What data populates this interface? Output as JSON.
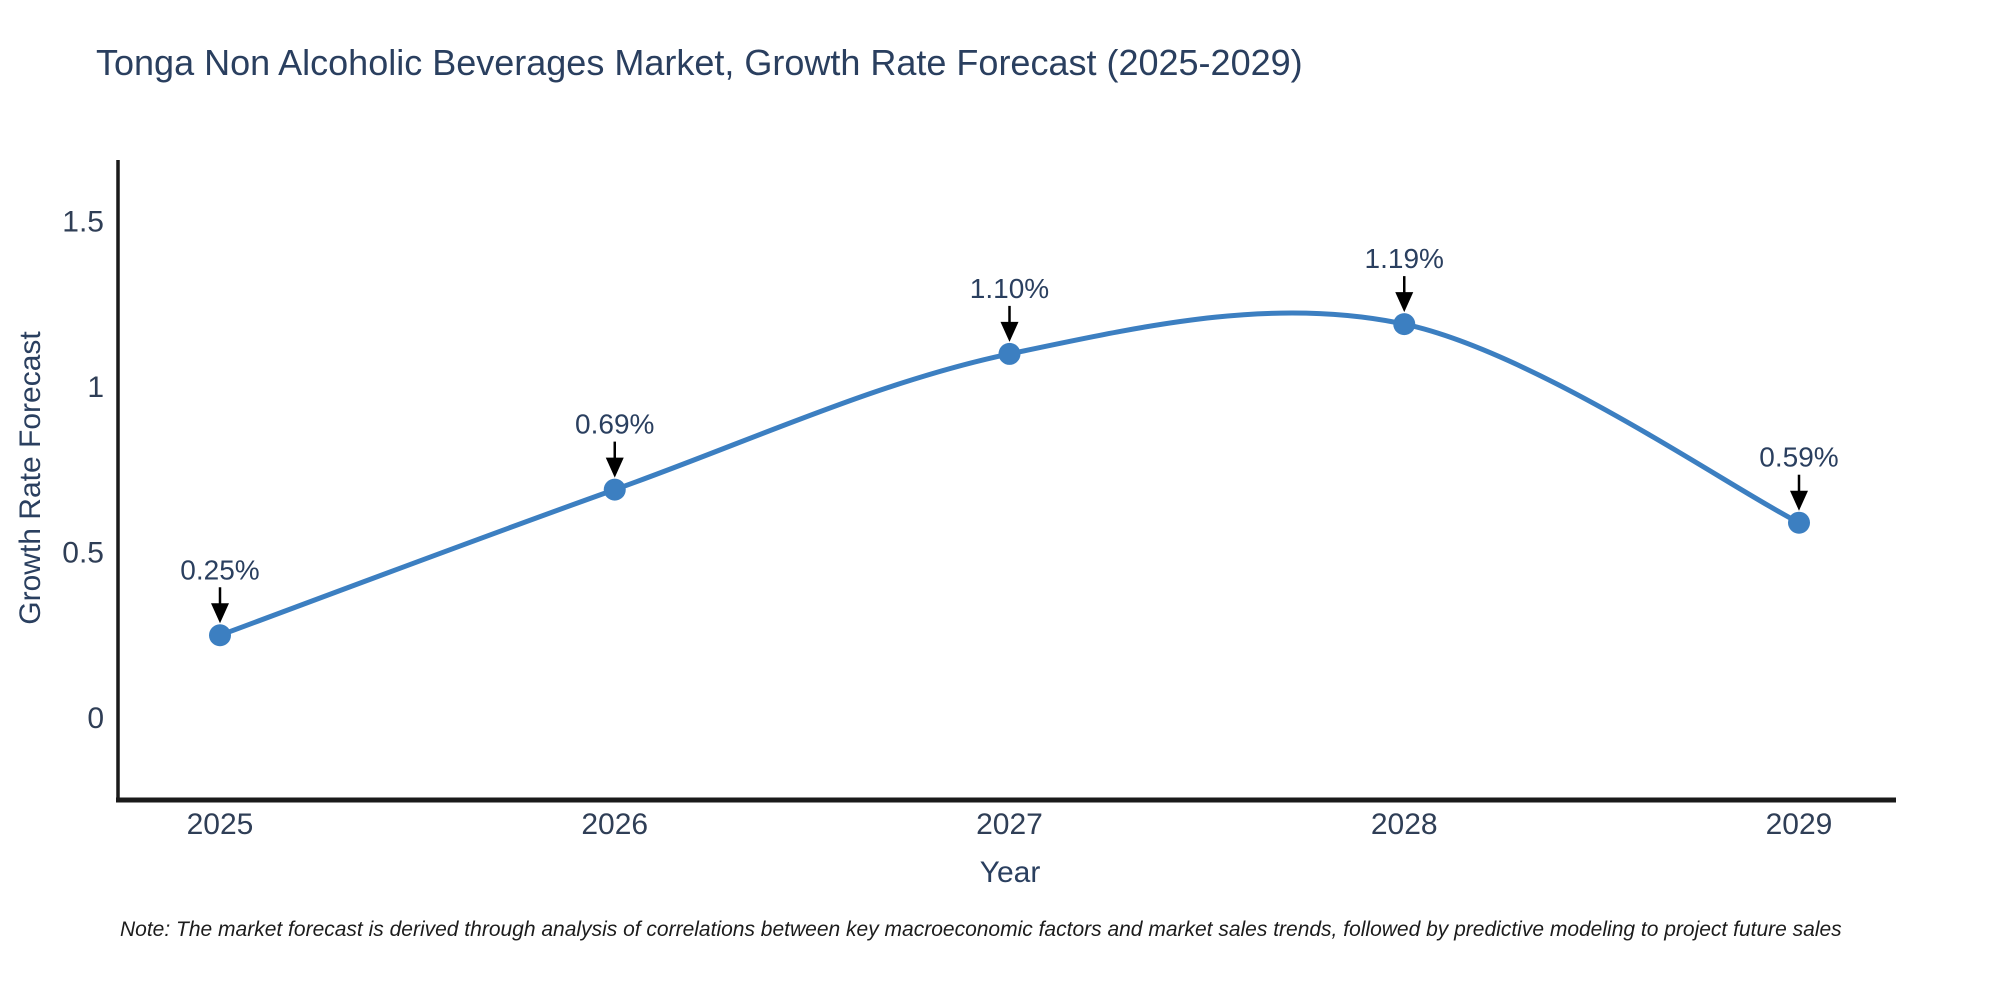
{
  "note": "Note: The market forecast is derived through analysis of correlations between key macroeconomic factors and market sales trends, followed by predictive modeling to project future sales",
  "chart_data": {
    "type": "line",
    "title": "Tonga Non Alcoholic Beverages Market, Growth Rate Forecast (2025-2029)",
    "xlabel": "Year",
    "ylabel": "Growth Rate Forecast",
    "x": [
      2025,
      2026,
      2027,
      2028,
      2029
    ],
    "x_tick_labels": [
      "2025",
      "2026",
      "2027",
      "2028",
      "2029"
    ],
    "series": [
      {
        "name": "Growth Rate Forecast",
        "values": [
          0.25,
          0.69,
          1.1,
          1.19,
          0.59
        ],
        "point_labels": [
          "0.25%",
          "0.69%",
          "1.10%",
          "1.19%",
          "0.59%"
        ]
      }
    ],
    "yticks": [
      0,
      0.5,
      1,
      1.5
    ],
    "ytick_labels": [
      "0",
      "0.5",
      "1",
      "1.5"
    ],
    "ylim": [
      -0.25,
      1.69
    ],
    "xlim": [
      2024.74,
      2029.25
    ],
    "grid": false,
    "legend": "none",
    "line_shape": "spline",
    "colors": {
      "line": "#3c7fc1",
      "marker": "#3c7fc1",
      "axis": "#1a1a1a",
      "arrow": "#000000",
      "title_text": "#2a3f5f",
      "tick_text": "#2f3e56",
      "background": "#ffffff"
    }
  }
}
